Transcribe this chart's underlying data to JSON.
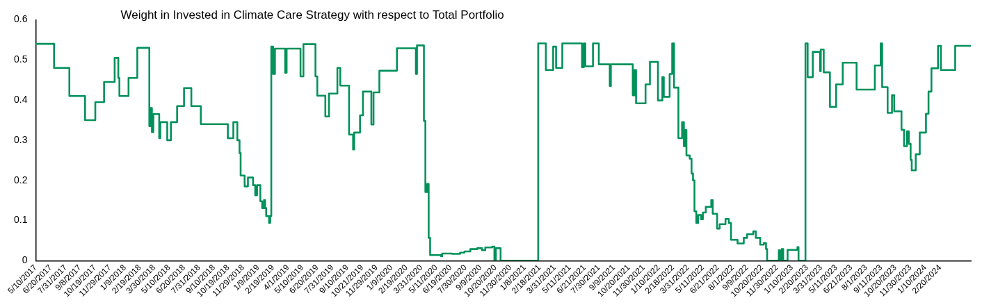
{
  "chart_data": {
    "type": "step",
    "title": "Weight in Invested in Climate Care Strategy with respect to Total Portfolio",
    "xlim": [
      "2017-05-10",
      "2024-05-14"
    ],
    "xticks": [
      {
        "value": "2017-05-10",
        "label": "5/10/2017"
      },
      {
        "value": "2017-06-20",
        "label": "6/20/2017"
      },
      {
        "value": "2017-07-31",
        "label": "7/31/2017"
      },
      {
        "value": "2017-09-08",
        "label": "9/8/2017"
      },
      {
        "value": "2017-10-19",
        "label": "10/19/2017"
      },
      {
        "value": "2017-11-29",
        "label": "11/29/2017"
      },
      {
        "value": "2018-01-09",
        "label": "1/9/2018"
      },
      {
        "value": "2018-02-19",
        "label": "2/19/2018"
      },
      {
        "value": "2018-03-30",
        "label": "3/30/2018"
      },
      {
        "value": "2018-05-10",
        "label": "5/10/2018"
      },
      {
        "value": "2018-06-20",
        "label": "6/20/2018"
      },
      {
        "value": "2018-07-31",
        "label": "7/31/2018"
      },
      {
        "value": "2018-09-10",
        "label": "9/10/2018"
      },
      {
        "value": "2018-10-19",
        "label": "10/19/2018"
      },
      {
        "value": "2018-11-29",
        "label": "11/29/2018"
      },
      {
        "value": "2019-01-09",
        "label": "1/9/2019"
      },
      {
        "value": "2019-02-19",
        "label": "2/19/2019"
      },
      {
        "value": "2019-04-01",
        "label": "4/1/2019"
      },
      {
        "value": "2019-05-10",
        "label": "5/10/2019"
      },
      {
        "value": "2019-06-20",
        "label": "6/20/2019"
      },
      {
        "value": "2019-07-31",
        "label": "7/31/2019"
      },
      {
        "value": "2019-09-10",
        "label": "9/10/2019"
      },
      {
        "value": "2019-10-21",
        "label": "10/21/2019"
      },
      {
        "value": "2019-11-29",
        "label": "11/29/2019"
      },
      {
        "value": "2020-01-09",
        "label": "1/9/2020"
      },
      {
        "value": "2020-02-19",
        "label": "2/19/2020"
      },
      {
        "value": "2020-03-31",
        "label": "3/31/2020"
      },
      {
        "value": "2020-05-11",
        "label": "5/11/2020"
      },
      {
        "value": "2020-06-19",
        "label": "6/19/2020"
      },
      {
        "value": "2020-07-30",
        "label": "7/30/2020"
      },
      {
        "value": "2020-09-09",
        "label": "9/9/2020"
      },
      {
        "value": "2020-10-20",
        "label": "10/20/2020"
      },
      {
        "value": "2020-11-30",
        "label": "11/30/2020"
      },
      {
        "value": "2021-01-08",
        "label": "1/8/2021"
      },
      {
        "value": "2021-02-18",
        "label": "2/18/2021"
      },
      {
        "value": "2021-03-31",
        "label": "3/31/2021"
      },
      {
        "value": "2021-05-11",
        "label": "5/11/2021"
      },
      {
        "value": "2021-06-21",
        "label": "6/21/2021"
      },
      {
        "value": "2021-07-30",
        "label": "7/30/2021"
      },
      {
        "value": "2021-09-09",
        "label": "9/9/2021"
      },
      {
        "value": "2021-10-20",
        "label": "10/20/2021"
      },
      {
        "value": "2021-11-30",
        "label": "11/30/2021"
      },
      {
        "value": "2022-01-10",
        "label": "1/10/2022"
      },
      {
        "value": "2022-02-18",
        "label": "2/18/2022"
      },
      {
        "value": "2022-03-31",
        "label": "3/31/2022"
      },
      {
        "value": "2022-05-11",
        "label": "5/11/2022"
      },
      {
        "value": "2022-06-21",
        "label": "6/21/2022"
      },
      {
        "value": "2022-08-01",
        "label": "8/1/2022"
      },
      {
        "value": "2022-09-09",
        "label": "9/9/2022"
      },
      {
        "value": "2022-10-20",
        "label": "10/20/2022"
      },
      {
        "value": "2022-11-30",
        "label": "11/30/2022"
      },
      {
        "value": "2023-01-10",
        "label": "1/10/2023"
      },
      {
        "value": "2023-02-20",
        "label": "2/20/2023"
      },
      {
        "value": "2023-03-31",
        "label": "3/31/2023"
      },
      {
        "value": "2023-05-11",
        "label": "5/11/2023"
      },
      {
        "value": "2023-06-21",
        "label": "6/21/2023"
      },
      {
        "value": "2023-08-01",
        "label": "8/1/2023"
      },
      {
        "value": "2023-09-11",
        "label": "9/11/2023"
      },
      {
        "value": "2023-10-20",
        "label": "10/20/2023"
      },
      {
        "value": "2023-11-30",
        "label": "11/30/2023"
      },
      {
        "value": "2024-01-10",
        "label": "1/10/2024"
      },
      {
        "value": "2024-02-20",
        "label": "2/20/2024"
      }
    ],
    "ylim": [
      0,
      0.6
    ],
    "yticks": [
      0,
      0.1,
      0.2,
      0.3,
      0.4,
      0.5,
      0.6
    ],
    "marker": "none",
    "series": [
      {
        "color": "#00915a",
        "x": [
          "2017-05-10",
          "2017-06-29",
          "2017-08-10",
          "2017-09-22",
          "2017-10-20",
          "2017-11-13",
          "2017-12-12",
          "2017-12-22",
          "2017-12-25",
          "2018-01-19",
          "2018-02-12",
          "2018-03-17",
          "2018-03-20",
          "2018-03-24",
          "2018-03-28",
          "2018-04-13",
          "2018-04-16",
          "2018-05-05",
          "2018-05-15",
          "2018-06-01",
          "2018-06-20",
          "2018-07-10",
          "2018-08-05",
          "2018-10-18",
          "2018-11-02",
          "2018-11-13",
          "2018-11-19",
          "2018-11-22",
          "2018-12-03",
          "2018-12-12",
          "2018-12-26",
          "2019-01-01",
          "2019-01-06",
          "2019-01-15",
          "2019-01-20",
          "2019-01-25",
          "2019-01-28",
          "2019-01-31",
          "2019-02-08",
          "2019-02-11",
          "2019-02-14",
          "2019-02-19",
          "2019-02-24",
          "2019-03-24",
          "2019-03-28",
          "2019-05-05",
          "2019-05-13",
          "2019-06-15",
          "2019-06-20",
          "2019-07-12",
          "2019-07-22",
          "2019-08-14",
          "2019-08-22",
          "2019-09-15",
          "2019-09-26",
          "2019-09-29",
          "2019-10-15",
          "2019-10-23",
          "2019-11-15",
          "2019-11-21",
          "2019-12-07",
          "2020-01-24",
          "2020-03-16",
          "2020-03-19",
          "2020-04-07",
          "2020-04-11",
          "2020-04-16",
          "2020-04-20",
          "2020-04-24",
          "2020-05-24",
          "2020-05-27",
          "2020-06-23",
          "2020-07-15",
          "2020-07-27",
          "2020-08-12",
          "2020-08-31",
          "2020-09-13",
          "2020-09-22",
          "2020-10-11",
          "2020-10-17",
          "2020-10-21",
          "2020-11-03",
          "2021-02-14",
          "2021-03-07",
          "2021-03-27",
          "2021-04-04",
          "2021-04-21",
          "2021-06-14",
          "2021-06-19",
          "2021-06-23",
          "2021-07-14",
          "2021-07-30",
          "2021-08-29",
          "2021-09-01",
          "2021-10-31",
          "2021-11-05",
          "2021-11-09",
          "2021-12-05",
          "2021-12-17",
          "2022-01-08",
          "2022-01-20",
          "2022-01-24",
          "2022-02-09",
          "2022-02-16",
          "2022-02-21",
          "2022-03-05",
          "2022-03-15",
          "2022-03-20",
          "2022-03-24",
          "2022-03-27",
          "2022-04-05",
          "2022-04-10",
          "2022-04-14",
          "2022-04-18",
          "2022-04-23",
          "2022-04-28",
          "2022-05-06",
          "2022-05-11",
          "2022-05-19",
          "2022-06-03",
          "2022-06-07",
          "2022-06-19",
          "2022-06-26",
          "2022-07-12",
          "2022-07-21",
          "2022-07-27",
          "2022-08-14",
          "2022-08-31",
          "2022-09-09",
          "2022-09-26",
          "2022-10-03",
          "2022-10-15",
          "2022-10-25",
          "2022-10-31",
          "2022-11-03",
          "2022-12-05",
          "2022-12-08",
          "2022-12-13",
          "2022-12-17",
          "2022-12-29",
          "2023-01-25",
          "2023-01-28",
          "2023-02-16",
          "2023-02-22",
          "2023-03-08",
          "2023-03-28",
          "2023-03-30",
          "2023-04-07",
          "2023-04-24",
          "2023-05-11",
          "2023-05-29",
          "2023-07-06",
          "2023-08-25",
          "2023-09-10",
          "2023-09-14",
          "2023-09-29",
          "2023-10-11",
          "2023-10-17",
          "2023-11-06",
          "2023-11-13",
          "2023-11-21",
          "2023-11-26",
          "2023-12-01",
          "2023-12-04",
          "2023-12-15",
          "2023-12-26",
          "2024-01-12",
          "2024-01-19",
          "2024-01-27",
          "2024-02-14",
          "2024-02-22",
          "2024-04-01",
          "2024-05-14"
        ],
        "values": [
          0.54,
          0.48,
          0.41,
          0.35,
          0.395,
          0.445,
          0.505,
          0.455,
          0.41,
          0.455,
          0.53,
          0.335,
          0.38,
          0.32,
          0.365,
          0.305,
          0.345,
          0.3,
          0.345,
          0.385,
          0.43,
          0.385,
          0.34,
          0.305,
          0.345,
          0.3,
          0.268,
          0.212,
          0.185,
          0.207,
          0.188,
          0.163,
          0.188,
          0.148,
          0.131,
          0.151,
          0.131,
          0.111,
          0.094,
          0.111,
          0.533,
          0.465,
          0.528,
          0.468,
          0.528,
          0.459,
          0.539,
          0.459,
          0.411,
          0.359,
          0.416,
          0.48,
          0.436,
          0.314,
          0.277,
          0.319,
          0.362,
          0.421,
          0.339,
          0.419,
          0.473,
          0.529,
          0.465,
          0.536,
          0.348,
          0.171,
          0.191,
          0.057,
          0.014,
          0.011,
          0.018,
          0.017,
          0.02,
          0.023,
          0.029,
          0.031,
          0.026,
          0.033,
          0.035,
          0,
          0.031,
          0,
          0.541,
          0.475,
          0.533,
          0.48,
          0.541,
          0.482,
          0.541,
          0.484,
          0.541,
          0.489,
          0.435,
          0.489,
          0.412,
          0.475,
          0.392,
          0.439,
          0.495,
          0.399,
          0.457,
          0.408,
          0.465,
          0.541,
          0.431,
          0.305,
          0.345,
          0.285,
          0.325,
          0.262,
          0.254,
          0.217,
          0.2,
          0.123,
          0.094,
          0.114,
          0.103,
          0.12,
          0.134,
          0.151,
          0.117,
          0.08,
          0.091,
          0.104,
          0.094,
          0.052,
          0.043,
          0.057,
          0.066,
          0.073,
          0.057,
          0.04,
          0.044,
          0.029,
          0,
          0.026,
          0,
          0.029,
          0,
          0.027,
          0.034,
          0,
          0.541,
          0.457,
          0.52,
          0.472,
          0.526,
          0.469,
          0.383,
          0.439,
          0.493,
          0.426,
          0.486,
          0.541,
          0.432,
          0.368,
          0.412,
          0.372,
          0.326,
          0.285,
          0.322,
          0.291,
          0.251,
          0.225,
          0.265,
          0.319,
          0.366,
          0.421,
          0.479,
          0.535,
          0.475,
          0.535,
          0.535
        ]
      }
    ]
  }
}
